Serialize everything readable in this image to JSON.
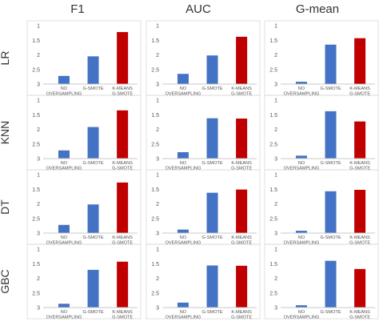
{
  "chart_data": {
    "type": "bar",
    "metrics": [
      "F1",
      "AUC",
      "G-mean"
    ],
    "models": [
      "LR",
      "KNN",
      "DT",
      "GBC"
    ],
    "categories": [
      [
        "NO",
        "OVERSAMPLING"
      ],
      [
        "G-SMOTE"
      ],
      [
        "K-MEANS",
        "G-SMOTE"
      ]
    ],
    "y_ticks": [
      "1",
      "1.5",
      "2",
      "2.5",
      "3"
    ],
    "ylim": [
      3,
      1
    ],
    "y_inverted": true,
    "colors": [
      "#4472c4",
      "#4472c4",
      "#c00000"
    ],
    "panels": [
      {
        "model": "LR",
        "metric": "F1",
        "values": [
          2.72,
          2.05,
          1.22
        ]
      },
      {
        "model": "LR",
        "metric": "AUC",
        "values": [
          2.65,
          2.02,
          1.38
        ]
      },
      {
        "model": "LR",
        "metric": "G-mean",
        "values": [
          2.92,
          1.65,
          1.43
        ]
      },
      {
        "model": "KNN",
        "metric": "F1",
        "values": [
          2.72,
          1.92,
          1.35
        ]
      },
      {
        "model": "KNN",
        "metric": "AUC",
        "values": [
          2.78,
          1.62,
          1.63
        ]
      },
      {
        "model": "KNN",
        "metric": "G-mean",
        "values": [
          2.9,
          1.38,
          1.73
        ]
      },
      {
        "model": "DT",
        "metric": "F1",
        "values": [
          2.72,
          2.02,
          1.27
        ]
      },
      {
        "model": "DT",
        "metric": "AUC",
        "values": [
          2.88,
          1.62,
          1.51
        ]
      },
      {
        "model": "DT",
        "metric": "G-mean",
        "values": [
          2.92,
          1.57,
          1.52
        ]
      },
      {
        "model": "GBC",
        "metric": "F1",
        "values": [
          2.87,
          1.71,
          1.43
        ]
      },
      {
        "model": "GBC",
        "metric": "AUC",
        "values": [
          2.83,
          1.56,
          1.57
        ]
      },
      {
        "model": "GBC",
        "metric": "G-mean",
        "values": [
          2.92,
          1.4,
          1.68
        ]
      }
    ]
  }
}
